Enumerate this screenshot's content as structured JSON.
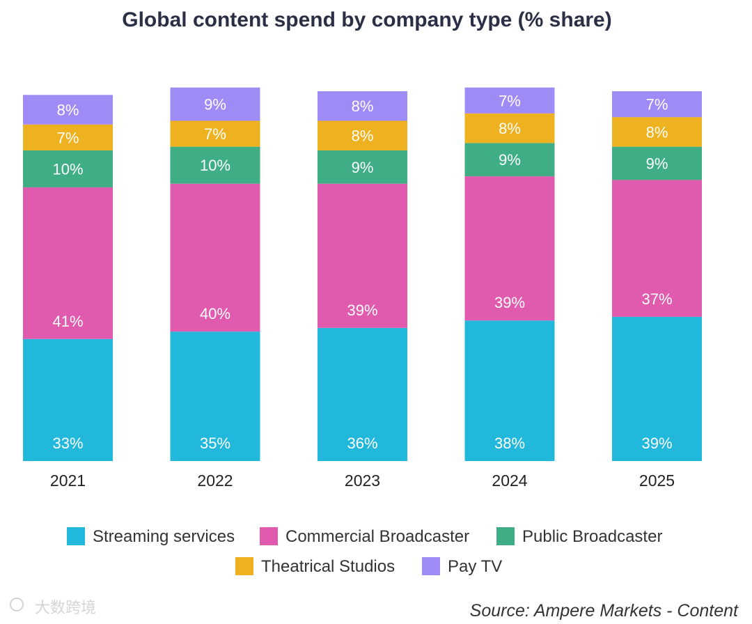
{
  "chart_data": {
    "type": "bar",
    "stacked": true,
    "title": "Global content spend by company type (% share)",
    "xlabel": "",
    "ylabel": "",
    "categories": [
      "2021",
      "2022",
      "2023",
      "2024",
      "2025"
    ],
    "series": [
      {
        "name": "Streaming services",
        "color": "#22b8dc",
        "values": [
          33,
          35,
          36,
          38,
          39
        ]
      },
      {
        "name": "Commercial Broadcaster",
        "color": "#e05aae",
        "values": [
          41,
          40,
          39,
          39,
          37
        ]
      },
      {
        "name": "Public Broadcaster",
        "color": "#3fae84",
        "values": [
          10,
          10,
          9,
          9,
          9
        ]
      },
      {
        "name": "Theatrical Studios",
        "color": "#eeb11f",
        "values": [
          7,
          7,
          8,
          8,
          8
        ]
      },
      {
        "name": "Pay TV",
        "color": "#9f8bf5",
        "values": [
          8,
          9,
          8,
          7,
          7
        ]
      }
    ],
    "value_suffix": "%",
    "legend_position": "bottom",
    "grid": false,
    "source": "Source: Ampere Markets - Content"
  },
  "watermark": "大数跨境"
}
